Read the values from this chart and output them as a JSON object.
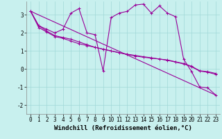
{
  "xlabel": "Windchill (Refroidissement éolien,°C)",
  "bg_color": "#c8f0ee",
  "line_color": "#990099",
  "xlim": [
    -0.5,
    23.5
  ],
  "ylim": [
    -2.5,
    3.75
  ],
  "yticks": [
    -2,
    -1,
    0,
    1,
    2,
    3
  ],
  "xticks": [
    0,
    1,
    2,
    3,
    4,
    5,
    6,
    7,
    8,
    9,
    10,
    11,
    12,
    13,
    14,
    15,
    16,
    17,
    18,
    19,
    20,
    21,
    22,
    23
  ],
  "series1_x": [
    0,
    1,
    2,
    3,
    4,
    5,
    6,
    7,
    8,
    9,
    10,
    11,
    12,
    13,
    14,
    15,
    16,
    17,
    18,
    19,
    20,
    21,
    22,
    23
  ],
  "series1_y": [
    3.2,
    2.4,
    2.2,
    2.0,
    2.2,
    3.1,
    3.35,
    2.0,
    1.9,
    -0.1,
    2.85,
    3.1,
    3.2,
    3.55,
    3.6,
    3.1,
    3.5,
    3.1,
    2.9,
    0.55,
    -0.15,
    -1.0,
    -1.05,
    -1.45
  ],
  "series2_x": [
    0,
    23
  ],
  "series2_y": [
    3.2,
    -1.45
  ],
  "series3_x": [
    0,
    1,
    2,
    3,
    4,
    5,
    6,
    7,
    8,
    9,
    10,
    11,
    12,
    13,
    14,
    15,
    16,
    17,
    18,
    19,
    20,
    21,
    22,
    23
  ],
  "series3_y": [
    3.2,
    2.4,
    2.1,
    1.85,
    1.75,
    1.65,
    1.5,
    1.35,
    1.2,
    1.1,
    1.0,
    0.9,
    0.8,
    0.72,
    0.65,
    0.6,
    0.55,
    0.5,
    0.4,
    0.3,
    0.15,
    -0.1,
    -0.15,
    -0.25
  ],
  "series4_x": [
    0,
    1,
    2,
    3,
    4,
    5,
    6,
    7,
    8,
    9,
    10,
    11,
    12,
    13,
    14,
    15,
    16,
    17,
    18,
    19,
    20,
    21,
    22,
    23
  ],
  "series4_y": [
    3.2,
    2.3,
    2.05,
    1.8,
    1.7,
    1.55,
    1.4,
    1.3,
    1.2,
    1.1,
    1.0,
    0.9,
    0.82,
    0.75,
    0.68,
    0.62,
    0.55,
    0.48,
    0.38,
    0.28,
    0.12,
    -0.12,
    -0.18,
    -0.3
  ],
  "grid_color": "#a0d8d8",
  "xlabel_fontsize": 6.5,
  "tick_fontsize": 5.5
}
